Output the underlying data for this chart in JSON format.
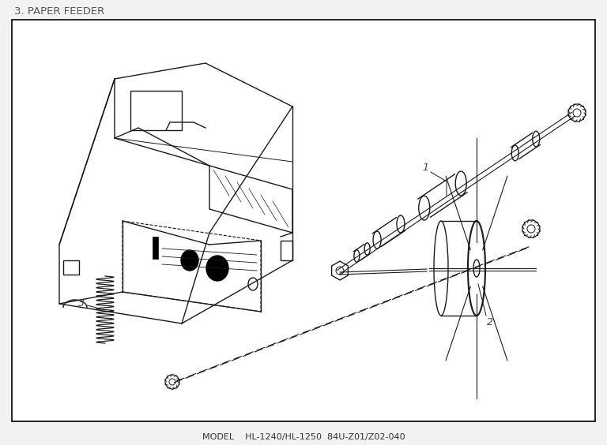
{
  "title": "3. PAPER FEEDER",
  "footer": "MODEL    HL-1240/HL-1250  84U-Z01/Z02-040",
  "bg_color": "#f2f2f2",
  "border_color": "#000000",
  "line_color": "#1a1a1a",
  "label_color": "#444444",
  "title_color": "#555555",
  "footer_color": "#333333"
}
